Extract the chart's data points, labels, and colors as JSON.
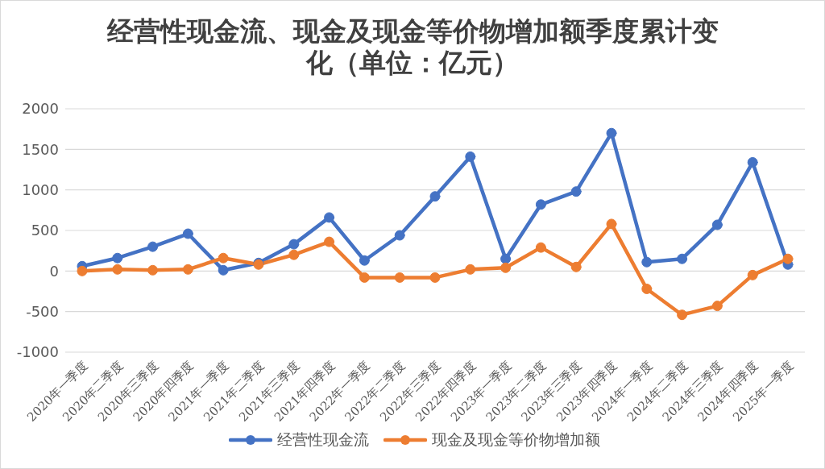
{
  "chart_data": {
    "type": "line",
    "title": "经营性现金流、现金及现金等价物增加额季度累计变化（单位：亿元）",
    "categories": [
      "2020年一季度",
      "2020年二季度",
      "2020年三季度",
      "2020年四季度",
      "2021年一季度",
      "2021年二季度",
      "2021年三季度",
      "2021年四季度",
      "2022年一季度",
      "2022年二季度",
      "2022年三季度",
      "2022年四季度",
      "2023年一季度",
      "2023年二季度",
      "2023年三季度",
      "2023年四季度",
      "2024年一季度",
      "2024年二季度",
      "2024年三季度",
      "2024年四季度",
      "2025年一季度"
    ],
    "series": [
      {
        "name": "经营性现金流",
        "color": "#4472c4",
        "values": [
          60,
          160,
          300,
          460,
          10,
          100,
          330,
          660,
          130,
          440,
          920,
          1410,
          150,
          820,
          980,
          1700,
          110,
          150,
          570,
          1340,
          80
        ]
      },
      {
        "name": "现金及现金等价物增加额",
        "color": "#ed7d31",
        "values": [
          0,
          20,
          10,
          20,
          160,
          80,
          200,
          360,
          -80,
          -80,
          -80,
          20,
          40,
          290,
          50,
          580,
          -220,
          -540,
          -430,
          -50,
          150
        ]
      }
    ],
    "ylim": [
      -1000,
      2000
    ],
    "yticks": [
      -1000,
      -500,
      0,
      500,
      1000,
      1500,
      2000
    ],
    "grid": "y",
    "legend": "bottom",
    "marker": "circle",
    "line_style": "solid"
  }
}
